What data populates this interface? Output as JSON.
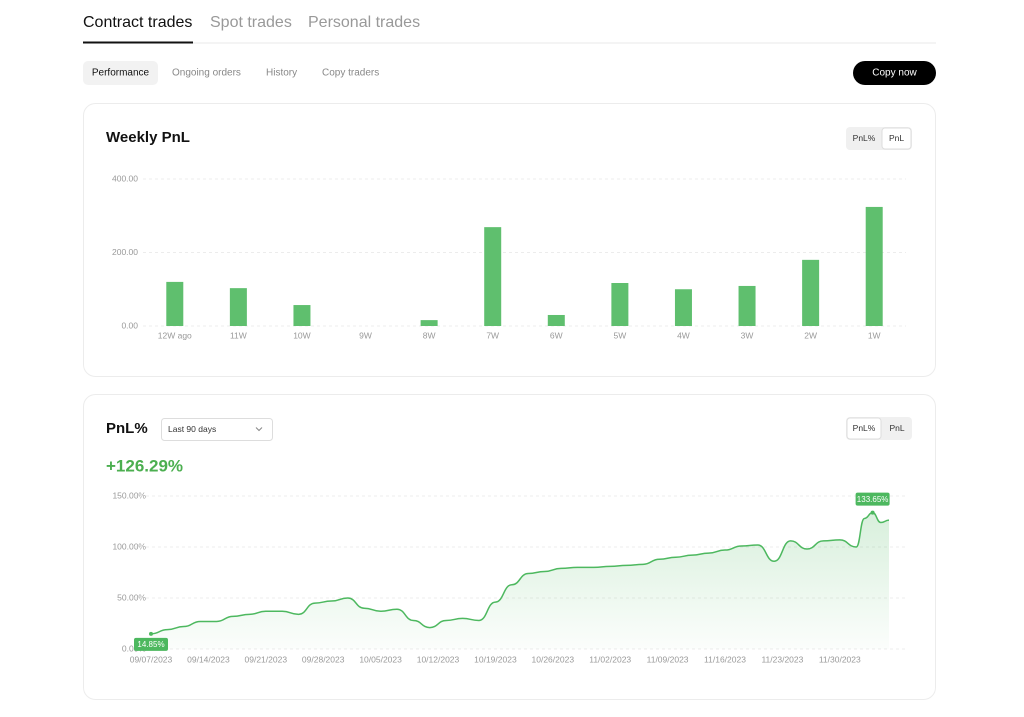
{
  "tabs": [
    "Contract trades",
    "Spot trades",
    "Personal trades"
  ],
  "subtabs": [
    "Performance",
    "Ongoing orders",
    "History",
    "Copy traders"
  ],
  "copy_button": "Copy now",
  "weekly_pnl": {
    "title": "Weekly PnL",
    "toggle": [
      "PnL%",
      "PnL"
    ],
    "chart_data": {
      "type": "bar",
      "categories": [
        "12W ago",
        "11W",
        "10W",
        "9W",
        "8W",
        "7W",
        "6W",
        "5W",
        "4W",
        "3W",
        "2W",
        "1W"
      ],
      "values": [
        120,
        103,
        57,
        0,
        16,
        269,
        30,
        117,
        100,
        109,
        180,
        324
      ],
      "color": "#5fbf6e",
      "ylim": [
        0,
        400
      ],
      "yticks": [
        {
          "value": 0,
          "label": "0.00"
        },
        {
          "value": 200,
          "label": "200.00"
        },
        {
          "value": 400,
          "label": "400.00"
        }
      ],
      "grid": true
    }
  },
  "pnl_percent": {
    "title": "PnL%",
    "dropdown": "Last 90 days",
    "toggle": [
      "PnL%",
      "PnL"
    ],
    "headline": "+126.29%",
    "chart_data": {
      "type": "line",
      "x": [
        "09/07/2023",
        "09/09/2023",
        "09/11/2023",
        "09/13/2023",
        "09/15/2023",
        "09/17/2023",
        "09/19/2023",
        "09/21/2023",
        "09/23/2023",
        "09/25/2023",
        "09/27/2023",
        "09/29/2023",
        "10/01/2023",
        "10/03/2023",
        "10/05/2023",
        "10/07/2023",
        "10/09/2023",
        "10/11/2023",
        "10/13/2023",
        "10/15/2023",
        "10/17/2023",
        "10/19/2023",
        "10/21/2023",
        "10/23/2023",
        "10/25/2023",
        "10/27/2023",
        "10/29/2023",
        "10/31/2023",
        "11/02/2023",
        "11/04/2023",
        "11/06/2023",
        "11/08/2023",
        "11/10/2023",
        "11/12/2023",
        "11/14/2023",
        "11/16/2023",
        "11/18/2023",
        "11/20/2023",
        "11/22/2023",
        "11/24/2023",
        "11/26/2023",
        "11/28/2023",
        "11/30/2023",
        "12/02/2023",
        "12/03/2023",
        "12/04/2023",
        "12/05/2023",
        "12/06/2023"
      ],
      "values": [
        14.85,
        19,
        22,
        27,
        27,
        32,
        34,
        37,
        37,
        34,
        45,
        47,
        50,
        40,
        37,
        39,
        28,
        21,
        28,
        30,
        28,
        46,
        63,
        74,
        76,
        79,
        80,
        80,
        81,
        82,
        83,
        88,
        90,
        92,
        94,
        97,
        101,
        102,
        86,
        106,
        98,
        106,
        107,
        100,
        128,
        133.65,
        124,
        126.29
      ],
      "value_labels": [
        "14.85%",
        null,
        null,
        null,
        null,
        null,
        null,
        null,
        null,
        null,
        null,
        null,
        null,
        null,
        null,
        null,
        null,
        null,
        null,
        null,
        null,
        null,
        null,
        null,
        null,
        null,
        null,
        null,
        null,
        null,
        null,
        null,
        null,
        null,
        null,
        null,
        null,
        null,
        null,
        null,
        null,
        null,
        null,
        null,
        null,
        "133.65%",
        null,
        null
      ],
      "color": "#4db85f",
      "xlim": [
        "09/07/2023",
        "12/06/2023"
      ],
      "xticks": [
        "09/07/2023",
        "09/14/2023",
        "09/21/2023",
        "09/28/2023",
        "10/05/2023",
        "10/12/2023",
        "10/19/2023",
        "10/26/2023",
        "11/02/2023",
        "11/09/2023",
        "11/16/2023",
        "11/23/2023",
        "11/30/2023"
      ],
      "ylim": [
        0,
        150
      ],
      "yticks": [
        {
          "value": 0,
          "label": "0.00%"
        },
        {
          "value": 50,
          "label": "50.00%"
        },
        {
          "value": 100,
          "label": "100.00%"
        },
        {
          "value": 150,
          "label": "150.00%"
        }
      ],
      "grid": true
    }
  }
}
